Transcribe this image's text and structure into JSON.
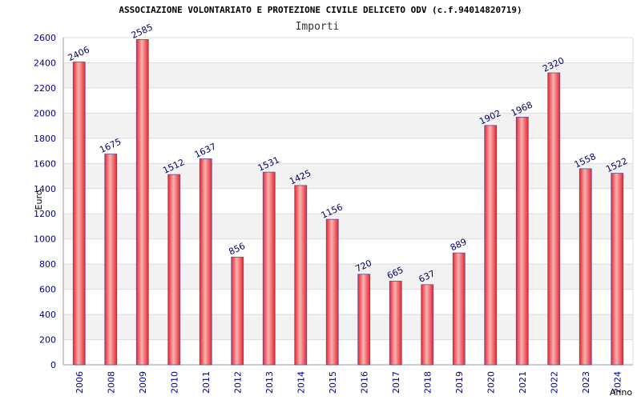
{
  "chart_data": {
    "type": "bar",
    "title": "ASSOCIAZIONE VOLONTARIATO E PROTEZIONE CIVILE DELICETO ODV (c.f.94014820719)",
    "subtitle": "Importi",
    "xlabel": "Anno",
    "ylabel": "Euro",
    "categories": [
      "2006",
      "2008",
      "2009",
      "2010",
      "2011",
      "2012",
      "2013",
      "2014",
      "2015",
      "2016",
      "2017",
      "2018",
      "2019",
      "2020",
      "2021",
      "2022",
      "2023",
      "2024"
    ],
    "values": [
      2406,
      1675,
      2585,
      1512,
      1637,
      856,
      1531,
      1425,
      1156,
      720,
      665,
      637,
      889,
      1902,
      1968,
      2320,
      1558,
      1522
    ],
    "ylim": [
      0,
      2600
    ],
    "yticks": [
      0,
      200,
      400,
      600,
      800,
      1000,
      1200,
      1400,
      1600,
      1800,
      2000,
      2200,
      2400,
      2600
    ],
    "grid": true,
    "colors": {
      "bar_fill": "#e8262b",
      "bar_highlight": "#f7b3b5",
      "bar_edge": "#6a4a8c",
      "band": "#f2f2f2",
      "grid": "#dcdcdc",
      "tick_text": "#00008b",
      "label_text": "#000066"
    }
  }
}
